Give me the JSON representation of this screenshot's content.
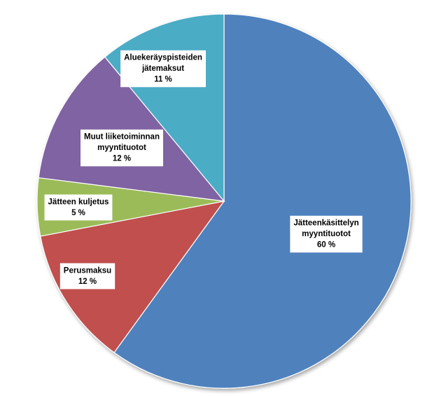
{
  "chart_data": {
    "type": "pie",
    "title": "",
    "start_angle_deg": 0,
    "direction": "clockwise",
    "slices": [
      {
        "label": "Jätteenkäsittelyn myyntituotot",
        "lines": [
          "Jätteenkäsittelyn",
          "myyntituotot"
        ],
        "value": 60,
        "value_label": "60 %",
        "color": "#4F81BD"
      },
      {
        "label": "Perusmaksu",
        "lines": [
          "Perusmaksu"
        ],
        "value": 12,
        "value_label": "12 %",
        "color": "#C0504D"
      },
      {
        "label": "Jätteen kuljetus",
        "lines": [
          "Jätteen kuljetus"
        ],
        "value": 5,
        "value_label": "5 %",
        "color": "#9BBB59"
      },
      {
        "label": "Muut liiketoiminnan myyntituotot",
        "lines": [
          "Muut liiketoiminnan",
          "myyntituotot"
        ],
        "value": 12,
        "value_label": "12 %",
        "color": "#8064A2"
      },
      {
        "label": "Aluekeräyspisteiden jätemaksut",
        "lines": [
          "Aluekeräyspisteiden",
          "jätemaksut"
        ],
        "value": 11,
        "value_label": "11 %",
        "color": "#4BACC6"
      }
    ]
  }
}
